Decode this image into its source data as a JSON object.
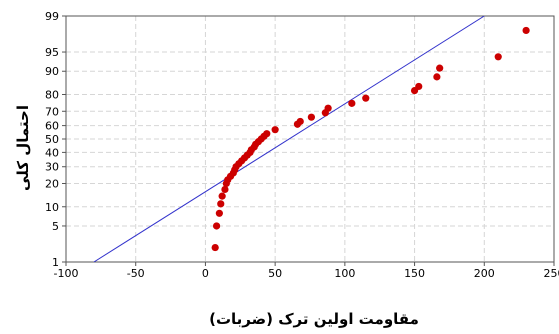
{
  "chart_data": {
    "type": "scatter",
    "title": "",
    "xlabel": "مقاومت اولین ترک (ضربات)",
    "ylabel": "احتمال کلی",
    "xlim": [
      -100,
      250
    ],
    "x_ticks": [
      -100,
      -50,
      0,
      50,
      100,
      150,
      200,
      250
    ],
    "y_scale": "normal-probability",
    "y_ticks": [
      1,
      5,
      10,
      20,
      30,
      40,
      50,
      60,
      70,
      80,
      90,
      95,
      99
    ],
    "ylim": [
      1,
      99
    ],
    "grid": true,
    "colors": {
      "points": "#cc0000",
      "fit_line": "#3333cc",
      "grid": "#d6d6d6",
      "frame": "#555555"
    },
    "fit_line": {
      "points": [
        [
          -80,
          1
        ],
        [
          200,
          99
        ]
      ]
    },
    "series": [
      {
        "points": [
          [
            7,
            2
          ],
          [
            8,
            5
          ],
          [
            10,
            8
          ],
          [
            11,
            11
          ],
          [
            12,
            14
          ],
          [
            14,
            17
          ],
          [
            15,
            20
          ],
          [
            16,
            22
          ],
          [
            18,
            24
          ],
          [
            20,
            26
          ],
          [
            21,
            28
          ],
          [
            22,
            30
          ],
          [
            24,
            32
          ],
          [
            26,
            34
          ],
          [
            28,
            36
          ],
          [
            30,
            38
          ],
          [
            32,
            40
          ],
          [
            33,
            42
          ],
          [
            35,
            44
          ],
          [
            36,
            46
          ],
          [
            38,
            48
          ],
          [
            40,
            50
          ],
          [
            42,
            52
          ],
          [
            44,
            54
          ],
          [
            50,
            57
          ],
          [
            66,
            61
          ],
          [
            68,
            63
          ],
          [
            76,
            66
          ],
          [
            86,
            69
          ],
          [
            88,
            72
          ],
          [
            105,
            75
          ],
          [
            115,
            78
          ],
          [
            150,
            82
          ],
          [
            153,
            84
          ],
          [
            166,
            88
          ],
          [
            168,
            91
          ],
          [
            210,
            94
          ],
          [
            230,
            98
          ]
        ]
      }
    ]
  }
}
